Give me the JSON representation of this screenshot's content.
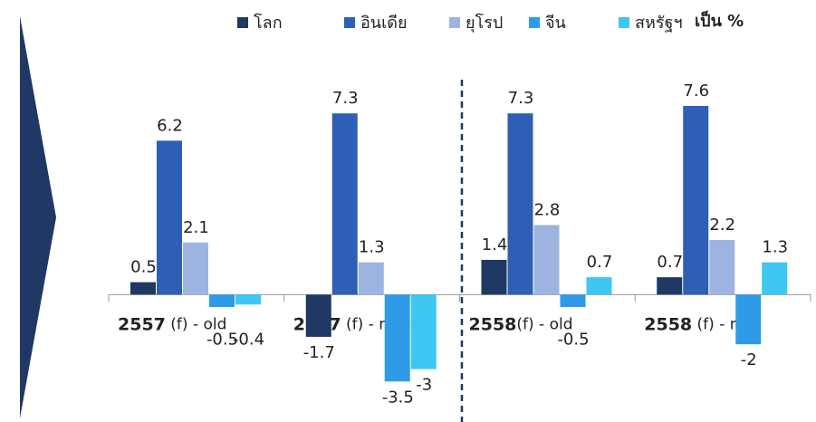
{
  "chart_data": {
    "type": "bar",
    "categories": [
      "2557 (f) - old",
      "2557 (f) - new",
      "2558(f) - old",
      "2558 (f) - new"
    ],
    "series": [
      {
        "name": "โลก",
        "color": "#1f3864",
        "values": [
          0.5,
          -1.7,
          1.4,
          0.7
        ]
      },
      {
        "name": "อินเดีย",
        "color": "#2e5fb5",
        "values": [
          6.2,
          7.3,
          7.3,
          7.6
        ]
      },
      {
        "name": "ยุโรป",
        "color": "#9db4e0",
        "values": [
          2.1,
          1.3,
          2.8,
          2.2
        ]
      },
      {
        "name": "จีน",
        "color": "#2f9be8",
        "values": [
          -0.5,
          -3.5,
          -0.5,
          -2.0
        ]
      },
      {
        "name": "สหรัฐฯ",
        "color": "#3ec7f0",
        "values": [
          -0.4,
          -3.0,
          0.7,
          1.3
        ]
      }
    ],
    "unit_label": "เป็น %",
    "ylim": [
      -4,
      8
    ],
    "legend": "top"
  }
}
